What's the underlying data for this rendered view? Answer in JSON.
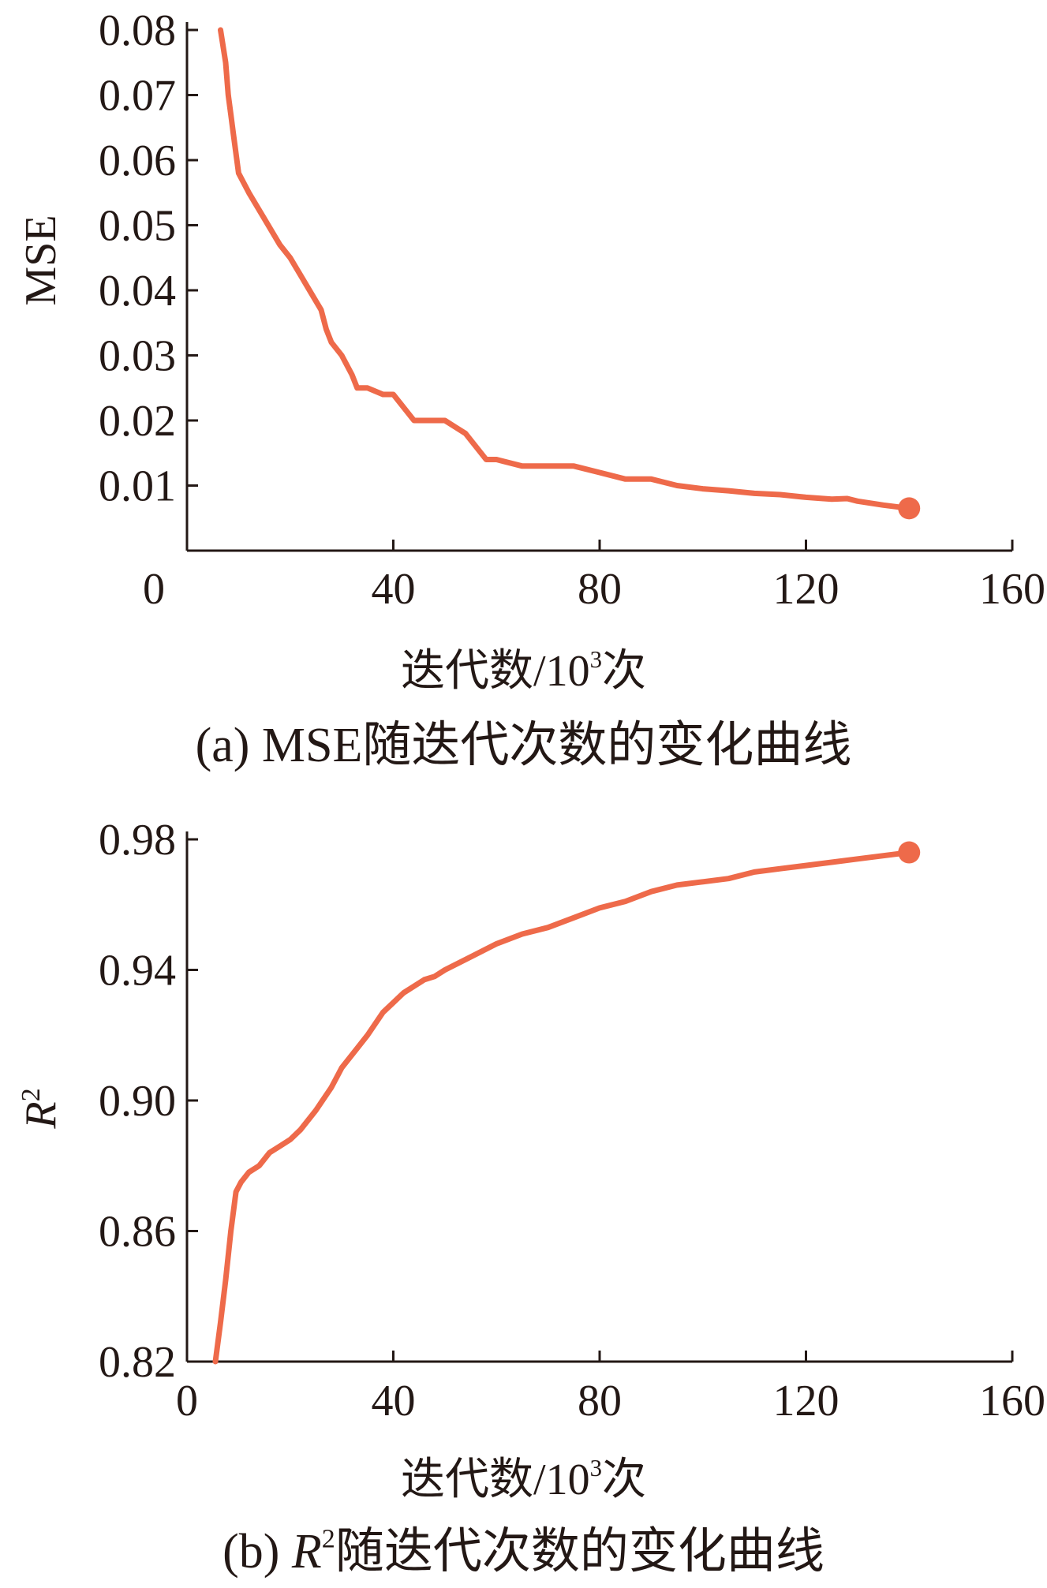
{
  "chart_data": [
    {
      "type": "line",
      "panel_caption": "(a) MSE随迭代次数的变化曲线",
      "xlabel": "迭代数/10",
      "xlabel_sup": "3",
      "xlabel_tail": "次",
      "ylabel": "MSE",
      "xlim": [
        0,
        160
      ],
      "ylim": [
        0.0,
        0.08
      ],
      "xticks": [
        0,
        40,
        80,
        120,
        160
      ],
      "xtick_labels": [
        "0",
        "40",
        "80",
        "120",
        "160"
      ],
      "yticks": [
        0.01,
        0.02,
        0.03,
        0.04,
        0.05,
        0.06,
        0.07,
        0.08
      ],
      "ytick_labels": [
        "0.01",
        "0.02",
        "0.03",
        "0.04",
        "0.05",
        "0.06",
        "0.07",
        "0.08"
      ],
      "grid": false,
      "color": "#EE6A4A",
      "series": [
        {
          "x": [
            6.5,
            7.5,
            8.0,
            8.5,
            9.0,
            10,
            12,
            15,
            18,
            20,
            23,
            26,
            27,
            28,
            30,
            32,
            33,
            35,
            38,
            40,
            42,
            44,
            46,
            48,
            50,
            52,
            54,
            56,
            58,
            60,
            65,
            70,
            75,
            80,
            85,
            90,
            95,
            100,
            105,
            110,
            115,
            120,
            125,
            128,
            130,
            135,
            140
          ],
          "y": [
            0.08,
            0.075,
            0.07,
            0.067,
            0.064,
            0.058,
            0.055,
            0.051,
            0.047,
            0.045,
            0.041,
            0.037,
            0.034,
            0.032,
            0.03,
            0.027,
            0.025,
            0.025,
            0.024,
            0.024,
            0.022,
            0.02,
            0.02,
            0.02,
            0.02,
            0.019,
            0.018,
            0.016,
            0.014,
            0.014,
            0.013,
            0.013,
            0.013,
            0.012,
            0.011,
            0.011,
            0.01,
            0.0095,
            0.0092,
            0.0088,
            0.0086,
            0.0082,
            0.0079,
            0.008,
            0.0076,
            0.007,
            0.0065
          ],
          "endpoint": [
            140,
            0.0065
          ]
        }
      ]
    },
    {
      "type": "line",
      "panel_caption_prefix": "(b) ",
      "panel_caption_var": "R",
      "panel_caption_sup": "2",
      "panel_caption_rest": "随迭代次数的变化曲线",
      "xlabel": "迭代数/10",
      "xlabel_sup": "3",
      "xlabel_tail": "次",
      "ylabel_var": "R",
      "ylabel_sup": "2",
      "xlim": [
        0,
        160
      ],
      "ylim": [
        0.82,
        0.98
      ],
      "xticks": [
        0,
        40,
        80,
        120,
        160
      ],
      "xtick_labels": [
        "0",
        "40",
        "80",
        "120",
        "160"
      ],
      "yticks": [
        0.82,
        0.86,
        0.9,
        0.94,
        0.98
      ],
      "ytick_labels": [
        "0.82",
        "0.86",
        "0.90",
        "0.94",
        "0.98"
      ],
      "grid": false,
      "color": "#EE6A4A",
      "series": [
        {
          "x": [
            5.5,
            6.5,
            7.5,
            8.5,
            9.5,
            10.5,
            12,
            14,
            16,
            18,
            20,
            22,
            25,
            28,
            30,
            33,
            35,
            38,
            40,
            42,
            44,
            46,
            48,
            50,
            55,
            60,
            65,
            70,
            75,
            80,
            85,
            90,
            95,
            100,
            105,
            110,
            115,
            120,
            125,
            130,
            135,
            140
          ],
          "y": [
            0.82,
            0.832,
            0.845,
            0.86,
            0.872,
            0.875,
            0.878,
            0.88,
            0.884,
            0.886,
            0.888,
            0.891,
            0.897,
            0.904,
            0.91,
            0.916,
            0.92,
            0.927,
            0.93,
            0.933,
            0.935,
            0.937,
            0.938,
            0.94,
            0.944,
            0.948,
            0.951,
            0.953,
            0.956,
            0.959,
            0.961,
            0.964,
            0.966,
            0.967,
            0.968,
            0.97,
            0.971,
            0.972,
            0.973,
            0.974,
            0.975,
            0.976
          ],
          "endpoint": [
            140,
            0.976
          ]
        }
      ]
    }
  ]
}
